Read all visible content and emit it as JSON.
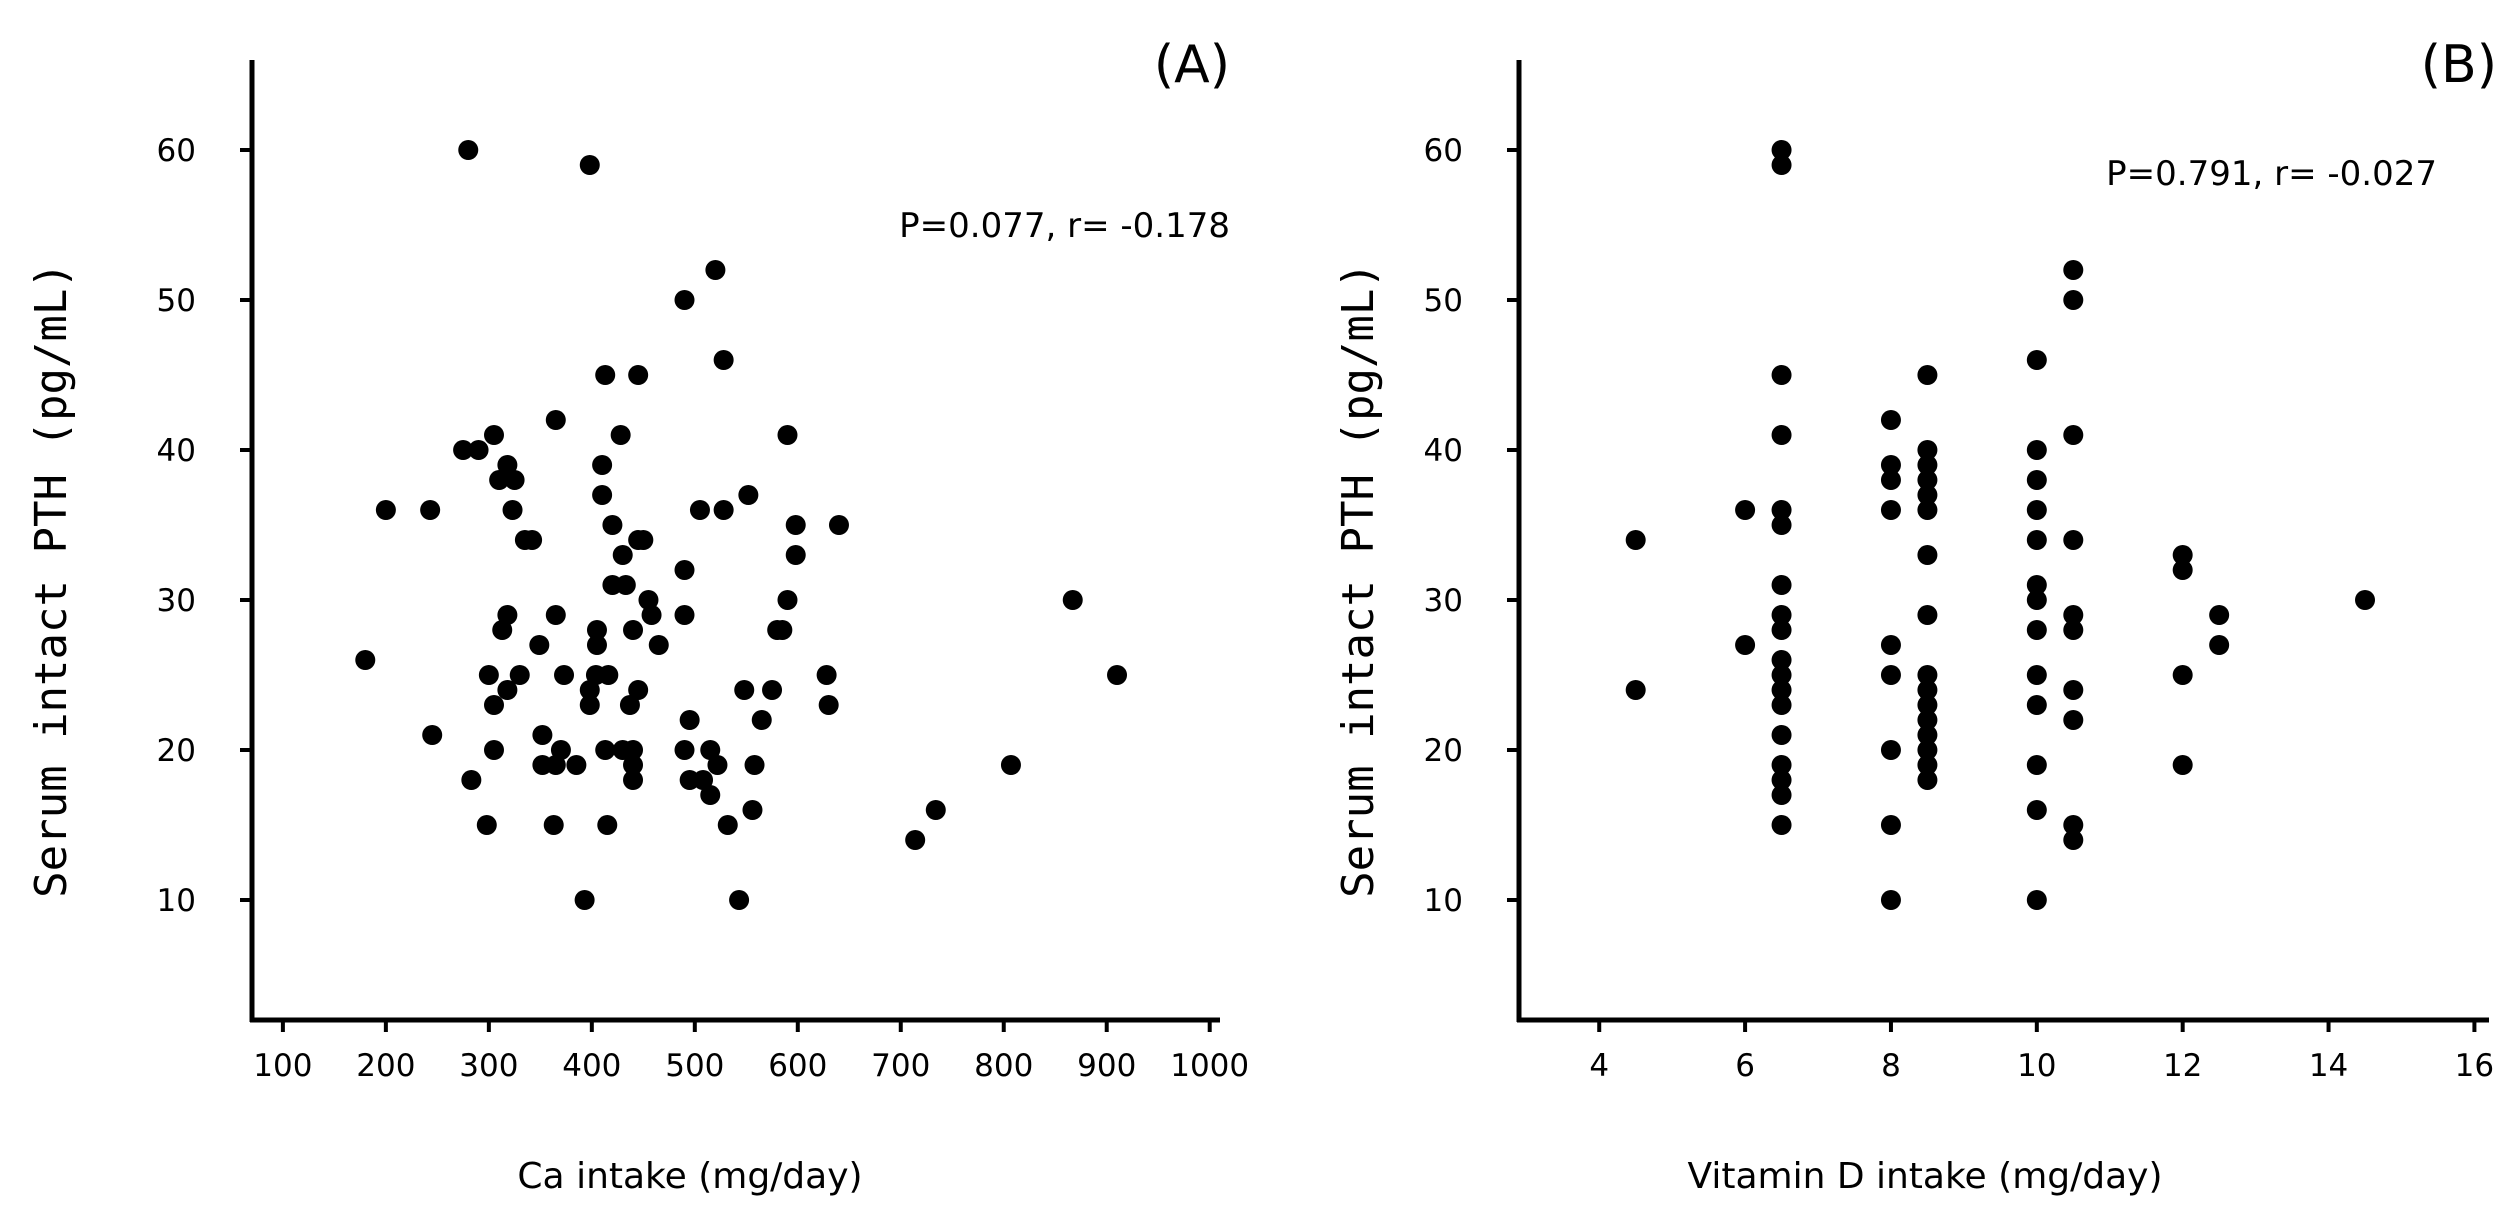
{
  "chart_data": [
    {
      "type": "scatter",
      "panel_label": "(A)",
      "annotation": "P=0.077, r= -0.178",
      "xlabel": "Ca intake (mg/day)",
      "ylabel": "Serum intact PTH (pg/mL)",
      "xlim": [
        70,
        1010
      ],
      "ylim": [
        2,
        66
      ],
      "xticks": [
        100,
        200,
        300,
        400,
        500,
        600,
        700,
        800,
        900,
        1000
      ],
      "yticks": [
        10,
        20,
        30,
        40,
        50,
        60
      ],
      "points": [
        [
          280,
          60
        ],
        [
          398,
          59
        ],
        [
          520,
          52
        ],
        [
          490,
          50
        ],
        [
          528,
          46
        ],
        [
          413,
          45
        ],
        [
          445,
          45
        ],
        [
          365,
          42
        ],
        [
          428,
          41
        ],
        [
          590,
          41
        ],
        [
          305,
          41
        ],
        [
          275,
          40
        ],
        [
          290,
          40
        ],
        [
          318,
          39
        ],
        [
          410,
          39
        ],
        [
          310,
          38
        ],
        [
          325,
          38
        ],
        [
          410,
          37
        ],
        [
          552,
          37
        ],
        [
          200,
          36
        ],
        [
          243,
          36
        ],
        [
          323,
          36
        ],
        [
          505,
          36
        ],
        [
          528,
          36
        ],
        [
          420,
          35
        ],
        [
          598,
          35
        ],
        [
          640,
          35
        ],
        [
          335,
          34
        ],
        [
          342,
          34
        ],
        [
          445,
          34
        ],
        [
          450,
          34
        ],
        [
          430,
          33
        ],
        [
          598,
          33
        ],
        [
          490,
          32
        ],
        [
          420,
          31
        ],
        [
          433,
          31
        ],
        [
          455,
          30
        ],
        [
          590,
          30
        ],
        [
          867,
          30
        ],
        [
          318,
          29
        ],
        [
          365,
          29
        ],
        [
          458,
          29
        ],
        [
          490,
          29
        ],
        [
          313,
          28
        ],
        [
          405,
          28
        ],
        [
          440,
          28
        ],
        [
          580,
          28
        ],
        [
          585,
          28
        ],
        [
          349,
          27
        ],
        [
          405,
          27
        ],
        [
          465,
          27
        ],
        [
          180,
          26
        ],
        [
          300,
          25
        ],
        [
          330,
          25
        ],
        [
          373,
          25
        ],
        [
          404,
          25
        ],
        [
          416,
          25
        ],
        [
          628,
          25
        ],
        [
          910,
          25
        ],
        [
          318,
          24
        ],
        [
          398,
          24
        ],
        [
          445,
          24
        ],
        [
          548,
          24
        ],
        [
          575,
          24
        ],
        [
          305,
          23
        ],
        [
          398,
          23
        ],
        [
          437,
          23
        ],
        [
          630,
          23
        ],
        [
          495,
          22
        ],
        [
          565,
          22
        ],
        [
          245,
          21
        ],
        [
          352,
          21
        ],
        [
          305,
          20
        ],
        [
          370,
          20
        ],
        [
          413,
          20
        ],
        [
          430,
          20
        ],
        [
          440,
          20
        ],
        [
          490,
          20
        ],
        [
          515,
          20
        ],
        [
          352,
          19
        ],
        [
          365,
          19
        ],
        [
          385,
          19
        ],
        [
          440,
          19
        ],
        [
          522,
          19
        ],
        [
          558,
          19
        ],
        [
          807,
          19
        ],
        [
          283,
          18
        ],
        [
          440,
          18
        ],
        [
          495,
          18
        ],
        [
          508,
          18
        ],
        [
          515,
          17
        ],
        [
          556,
          16
        ],
        [
          734,
          16
        ],
        [
          298,
          15
        ],
        [
          363,
          15
        ],
        [
          415,
          15
        ],
        [
          532,
          15
        ],
        [
          714,
          14
        ],
        [
          393,
          10
        ],
        [
          543,
          10
        ]
      ]
    },
    {
      "type": "scatter",
      "panel_label": "(B)",
      "annotation": "P=0.791, r= -0.027",
      "xlabel": "Vitamin D intake (mg/day)",
      "ylabel": "Serum intact PTH (pg/mL)",
      "xlim": [
        2.9,
        16.2
      ],
      "ylim": [
        2,
        66
      ],
      "xticks": [
        4,
        6,
        8,
        10,
        12,
        14,
        16
      ],
      "yticks": [
        10,
        20,
        30,
        40,
        50,
        60
      ],
      "points": [
        [
          4.5,
          34
        ],
        [
          4.5,
          24
        ],
        [
          6.0,
          36
        ],
        [
          6.0,
          27
        ],
        [
          6.5,
          60
        ],
        [
          6.5,
          59
        ],
        [
          6.5,
          45
        ],
        [
          6.5,
          41
        ],
        [
          6.5,
          36
        ],
        [
          6.5,
          35
        ],
        [
          6.5,
          31
        ],
        [
          6.5,
          29
        ],
        [
          6.5,
          28
        ],
        [
          6.5,
          26
        ],
        [
          6.5,
          25
        ],
        [
          6.5,
          24
        ],
        [
          6.5,
          23
        ],
        [
          6.5,
          21
        ],
        [
          6.5,
          19
        ],
        [
          6.5,
          18
        ],
        [
          6.5,
          17
        ],
        [
          6.5,
          15
        ],
        [
          8.0,
          42
        ],
        [
          8.0,
          39
        ],
        [
          8.0,
          38
        ],
        [
          8.0,
          36
        ],
        [
          8.0,
          27
        ],
        [
          8.0,
          25
        ],
        [
          8.0,
          20
        ],
        [
          8.0,
          15
        ],
        [
          8.0,
          10
        ],
        [
          8.5,
          45
        ],
        [
          8.5,
          40
        ],
        [
          8.5,
          39
        ],
        [
          8.5,
          38
        ],
        [
          8.5,
          37
        ],
        [
          8.5,
          36
        ],
        [
          8.5,
          33
        ],
        [
          8.5,
          29
        ],
        [
          8.5,
          25
        ],
        [
          8.5,
          24
        ],
        [
          8.5,
          23
        ],
        [
          8.5,
          22
        ],
        [
          8.5,
          21
        ],
        [
          8.5,
          20
        ],
        [
          8.5,
          19
        ],
        [
          8.5,
          18
        ],
        [
          10.0,
          46
        ],
        [
          10.0,
          40
        ],
        [
          10.0,
          38
        ],
        [
          10.0,
          36
        ],
        [
          10.0,
          34
        ],
        [
          10.0,
          31
        ],
        [
          10.0,
          30
        ],
        [
          10.0,
          28
        ],
        [
          10.0,
          25
        ],
        [
          10.0,
          23
        ],
        [
          10.0,
          19
        ],
        [
          10.0,
          16
        ],
        [
          10.0,
          10
        ],
        [
          10.5,
          52
        ],
        [
          10.5,
          50
        ],
        [
          10.5,
          41
        ],
        [
          10.5,
          34
        ],
        [
          10.5,
          29
        ],
        [
          10.5,
          28
        ],
        [
          10.5,
          24
        ],
        [
          10.5,
          22
        ],
        [
          10.5,
          15
        ],
        [
          10.5,
          14
        ],
        [
          12.0,
          33
        ],
        [
          12.0,
          32
        ],
        [
          12.0,
          25
        ],
        [
          12.0,
          19
        ],
        [
          12.5,
          29
        ],
        [
          12.5,
          27
        ],
        [
          14.5,
          30
        ]
      ]
    }
  ]
}
